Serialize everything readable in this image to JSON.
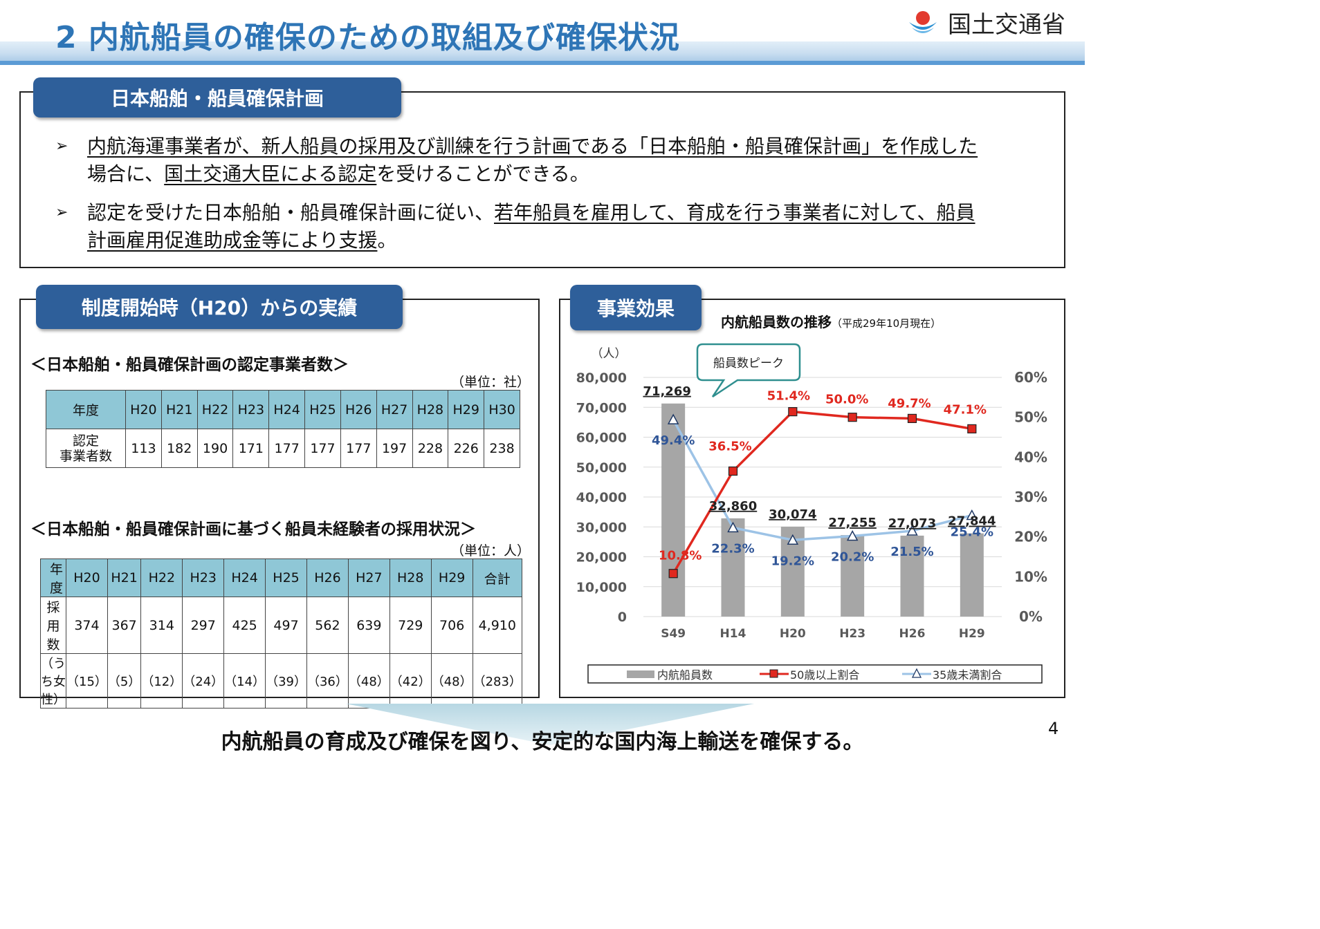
{
  "header": {
    "title": "2 内航船員の確保のための取組及び確保状況",
    "ministry": "国土交通省",
    "logo_icon": "mlit-logo-icon"
  },
  "plan_box": {
    "tab_label": "日本船舶・船員確保計画",
    "bullet1": {
      "plain1": "内航海運事業者が、新人船員の採用及び訓練を行う計画である「日本船舶・船員確保計画」を作成した",
      "plain2": "場合に、",
      "ul": "国土交通大臣による認定",
      "plain3": "を受けることができる。"
    },
    "bullet2": {
      "plain1": "認定を受けた日本船舶・船員確保計画に従い、",
      "ul1": "若年船員を雇用して、育成を行う事業者に対して、船員",
      "ul2": "計画雇用促進助成金等により支援",
      "plain2": "。"
    }
  },
  "results_box": {
    "tab_label": "制度開始時（H20）からの実績",
    "table1": {
      "title": "＜日本船舶・船員確保計画の認定事業者数＞",
      "unit": "（単位：社）",
      "header_label": "年度",
      "years": [
        "H20",
        "H21",
        "H22",
        "H23",
        "H24",
        "H25",
        "H26",
        "H27",
        "H28",
        "H29",
        "H30"
      ],
      "row_label_1": "認定",
      "row_label_2": "事業者数",
      "values": [
        "113",
        "182",
        "190",
        "171",
        "177",
        "177",
        "177",
        "197",
        "228",
        "226",
        "238"
      ]
    },
    "table2": {
      "title": "＜日本船舶・船員確保計画に基づく船員未経験者の採用状況＞",
      "unit": "（単位：人）",
      "header_label": "年度",
      "years": [
        "H20",
        "H21",
        "H22",
        "H23",
        "H24",
        "H25",
        "H26",
        "H27",
        "H28",
        "H29",
        "合計"
      ],
      "row1_label": "採用数",
      "row1": [
        "374",
        "367",
        "314",
        "297",
        "425",
        "497",
        "562",
        "639",
        "729",
        "706",
        "4,910"
      ],
      "row2_label": "（うち女性）",
      "row2": [
        "（15）",
        "（5）",
        "（12）",
        "（24）",
        "（14）",
        "（39）",
        "（36）",
        "（48）",
        "（42）",
        "（48）",
        "（283）"
      ]
    }
  },
  "effect_box": {
    "tab_label": "事業効果",
    "chart_title": "内航船員数の推移",
    "chart_subtitle": "（平成29年10月現在）",
    "callout": "船員数ピーク"
  },
  "chart_data": {
    "type": "bar",
    "title": "内航船員数の推移（平成29年10月現在）",
    "categories": [
      "S49",
      "H14",
      "H20",
      "H23",
      "H26",
      "H29"
    ],
    "y_left_unit": "（人）",
    "y_left_ticks": [
      "80,000",
      "70,000",
      "60,000",
      "50,000",
      "40,000",
      "30,000",
      "20,000",
      "10,000",
      "0"
    ],
    "y_right_ticks": [
      "60%",
      "50%",
      "40%",
      "30%",
      "20%",
      "10%",
      "0%"
    ],
    "ylim_left": [
      0,
      80000
    ],
    "ylim_right": [
      0,
      60
    ],
    "grid": true,
    "legend_position": "bottom",
    "series": [
      {
        "name": "内航船員数",
        "kind": "bar",
        "color": "#a6a6a6",
        "values": [
          71269,
          32860,
          30074,
          27255,
          27073,
          27844
        ],
        "labels": [
          "71,269",
          "32,860",
          "30,074",
          "27,255",
          "27,073",
          "27,844"
        ]
      },
      {
        "name": "50歳以上割合",
        "kind": "line",
        "axis": "right",
        "color": "#e0281f",
        "values": [
          10.8,
          36.5,
          51.4,
          50.0,
          49.7,
          47.1
        ],
        "labels": [
          "10.8%",
          "36.5%",
          "51.4%",
          "50.0%",
          "49.7%",
          "47.1%"
        ]
      },
      {
        "name": "35歳未満割合",
        "kind": "line",
        "axis": "right",
        "color": "#9dc3e6",
        "values": [
          49.4,
          22.3,
          19.2,
          20.2,
          21.5,
          25.4
        ],
        "labels": [
          "49.4%",
          "22.3%",
          "19.2%",
          "20.2%",
          "21.5%",
          "25.4%"
        ]
      }
    ]
  },
  "footer": {
    "conclusion": "内航船員の育成及び確保を図り、安定的な国内海上輸送を確保する。",
    "page_number": "4"
  }
}
